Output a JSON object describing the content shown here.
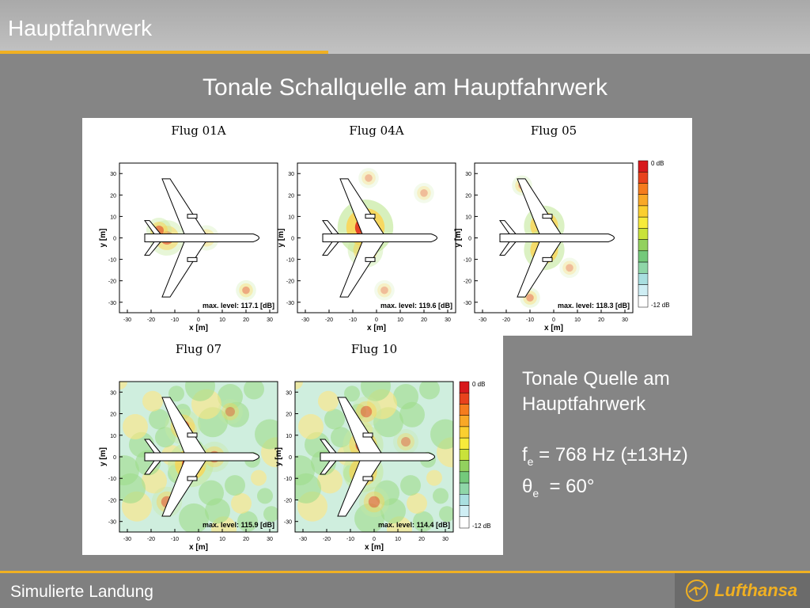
{
  "header": {
    "title": "Hauptfahrwerk"
  },
  "slide": {
    "title": "Tonale Schallquelle am Hauptfahrwerk"
  },
  "colors": {
    "accent": "#f0b022",
    "background": "#858585",
    "text": "#ffffff"
  },
  "axis": {
    "xlabel": "x [m]",
    "ylabel": "y [m]",
    "xticks": [
      "-30",
      "-20",
      "-10",
      "0",
      "10",
      "20",
      "30"
    ],
    "yticks": [
      "30",
      "20",
      "10",
      "0",
      "-10",
      "-20",
      "-30"
    ]
  },
  "colorbar": {
    "top_label": "0 dB",
    "bottom_label": "-12 dB"
  },
  "plots": [
    {
      "title": "Flug 01A",
      "level": "max. level: 117.1 [dB]",
      "max_level_db": 117.1
    },
    {
      "title": "Flug 04A",
      "level": "max. level: 119.6 [dB]",
      "max_level_db": 119.6
    },
    {
      "title": "Flug 05",
      "level": "max. level: 118.3 [dB]",
      "max_level_db": 118.3
    },
    {
      "title": "Flug 07",
      "level": "max. level: 115.9 [dB]",
      "max_level_db": 115.9
    },
    {
      "title": "Flug 10",
      "level": "max. level: 114.4 [dB]",
      "max_level_db": 114.4
    }
  ],
  "caption": {
    "line1": "Tonale Quelle am",
    "line2": "Hauptfahrwerk",
    "f_symbol": "f",
    "f_sub": "e",
    "f_value": " = 768 Hz (±13Hz)",
    "theta_symbol": "θ",
    "theta_sub": "e",
    "theta_value": "  = 60°"
  },
  "footer": {
    "text": "Simulierte Landung",
    "logo": "Lufthansa"
  }
}
